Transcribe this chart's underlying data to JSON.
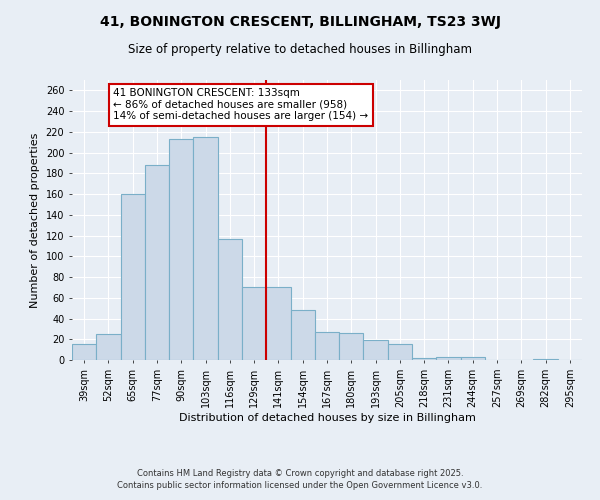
{
  "title_line1": "41, BONINGTON CRESCENT, BILLINGHAM, TS23 3WJ",
  "title_line2": "Size of property relative to detached houses in Billingham",
  "xlabel": "Distribution of detached houses by size in Billingham",
  "ylabel": "Number of detached properties",
  "categories": [
    "39sqm",
    "52sqm",
    "65sqm",
    "77sqm",
    "90sqm",
    "103sqm",
    "116sqm",
    "129sqm",
    "141sqm",
    "154sqm",
    "167sqm",
    "180sqm",
    "193sqm",
    "205sqm",
    "218sqm",
    "231sqm",
    "244sqm",
    "257sqm",
    "269sqm",
    "282sqm",
    "295sqm"
  ],
  "values": [
    15,
    25,
    160,
    188,
    213,
    215,
    117,
    70,
    70,
    48,
    27,
    26,
    19,
    15,
    2,
    3,
    3,
    0,
    0,
    1,
    0
  ],
  "bar_color": "#ccd9e8",
  "bar_edge_color": "#7aafc8",
  "background_color": "#e8eef5",
  "vline_x_idx": 7.5,
  "vline_color": "#cc0000",
  "annotation_title": "41 BONINGTON CRESCENT: 133sqm",
  "annotation_line1": "← 86% of detached houses are smaller (958)",
  "annotation_line2": "14% of semi-detached houses are larger (154) →",
  "annotation_box_color": "#cc0000",
  "ylim": [
    0,
    270
  ],
  "yticks": [
    0,
    20,
    40,
    60,
    80,
    100,
    120,
    140,
    160,
    180,
    200,
    220,
    240,
    260
  ],
  "footnote_line1": "Contains HM Land Registry data © Crown copyright and database right 2025.",
  "footnote_line2": "Contains public sector information licensed under the Open Government Licence v3.0.",
  "title_fontsize": 10,
  "subtitle_fontsize": 8.5,
  "axis_label_fontsize": 8,
  "tick_fontsize": 7,
  "annotation_fontsize": 7.5,
  "footnote_fontsize": 6
}
